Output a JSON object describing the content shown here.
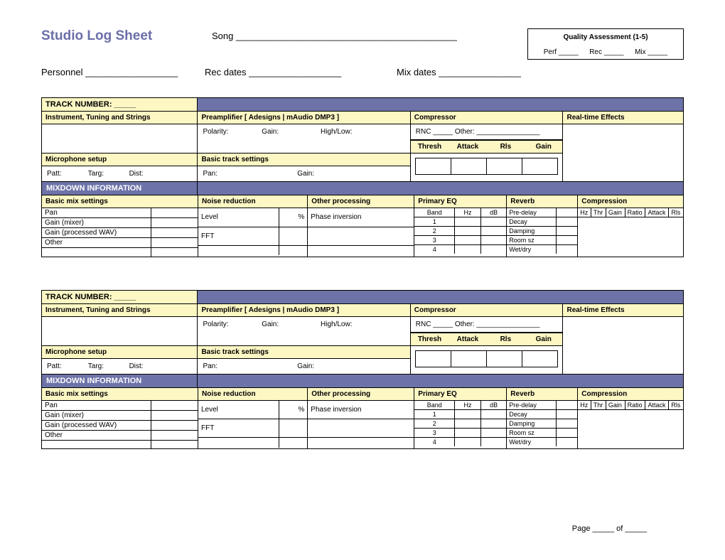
{
  "header": {
    "title": "Studio Log Sheet",
    "song_label": "Song ___________________________________________",
    "personnel_label": "Personnel __________________",
    "recdates_label": "Rec dates __________________",
    "mixdates_label": "Mix dates ________________"
  },
  "qa": {
    "title": "Quality Assessment  (1-5)",
    "perf": "Perf  _____",
    "rec": "Rec _____",
    "mix": "Mix _____"
  },
  "track_block": {
    "track_number_label": "TRACK NUMBER: _____",
    "col_instrument": "Instrument, Tuning and Strings",
    "col_preamp": "Preamplifier  [ Adesigns   |   mAudio DMP3 ]",
    "col_compressor": "Compressor",
    "col_fx": "Real-time Effects",
    "preamp_polarity": "Polarity:",
    "preamp_gain": "Gain:",
    "preamp_highlow": "High/Low:",
    "comp_rnc": "RNC _____    Other: ________________",
    "comp_thresh": "Thresh",
    "comp_attack": "Attack",
    "comp_rls": "Rls",
    "comp_gain": "Gain",
    "mic_setup": "Microphone setup",
    "basic_track": "Basic track settings",
    "mic_patt": "Patt:",
    "mic_targ": "Targ:",
    "mic_dist": "Dist:",
    "bt_pan": "Pan:",
    "bt_gain": "Gain:"
  },
  "mixdown": {
    "label": "MIXDOWN INFORMATION",
    "basic_mix": "Basic mix settings",
    "noise_red": "Noise reduction",
    "other_proc": "Other processing",
    "primary_eq": "Primary EQ",
    "reverb": "Reverb",
    "compression": "Compression",
    "mix_pan": "Pan",
    "mix_gain_mixer": "Gain (mixer)",
    "mix_gain_wav": "Gain (processed WAV)",
    "mix_other": "Other",
    "nr_level": "Level",
    "nr_pct": "%",
    "nr_fft": "FFT",
    "op_phase": "Phase inversion",
    "eq_band": "Band",
    "eq_hz": "Hz",
    "eq_db": "dB",
    "eq_1": "1",
    "eq_2": "2",
    "eq_3": "3",
    "eq_4": "4",
    "rv_predelay": "Pre-delay",
    "rv_decay": "Decay",
    "rv_damping": "Damping",
    "rv_roomsz": "Room sz",
    "rv_wetdry": "Wet/dry",
    "cp_hz": "Hz",
    "cp_thr": "Thr",
    "cp_gain": "Gain",
    "cp_ratio": "Ratio",
    "cp_attack": "Attack",
    "cp_rls": "Rls"
  },
  "footer": {
    "page_of": "Page _____ of _____"
  },
  "colors": {
    "purple": "#6d73a8",
    "yellow": "#fdf7c4",
    "title": "#6a6fa8"
  }
}
